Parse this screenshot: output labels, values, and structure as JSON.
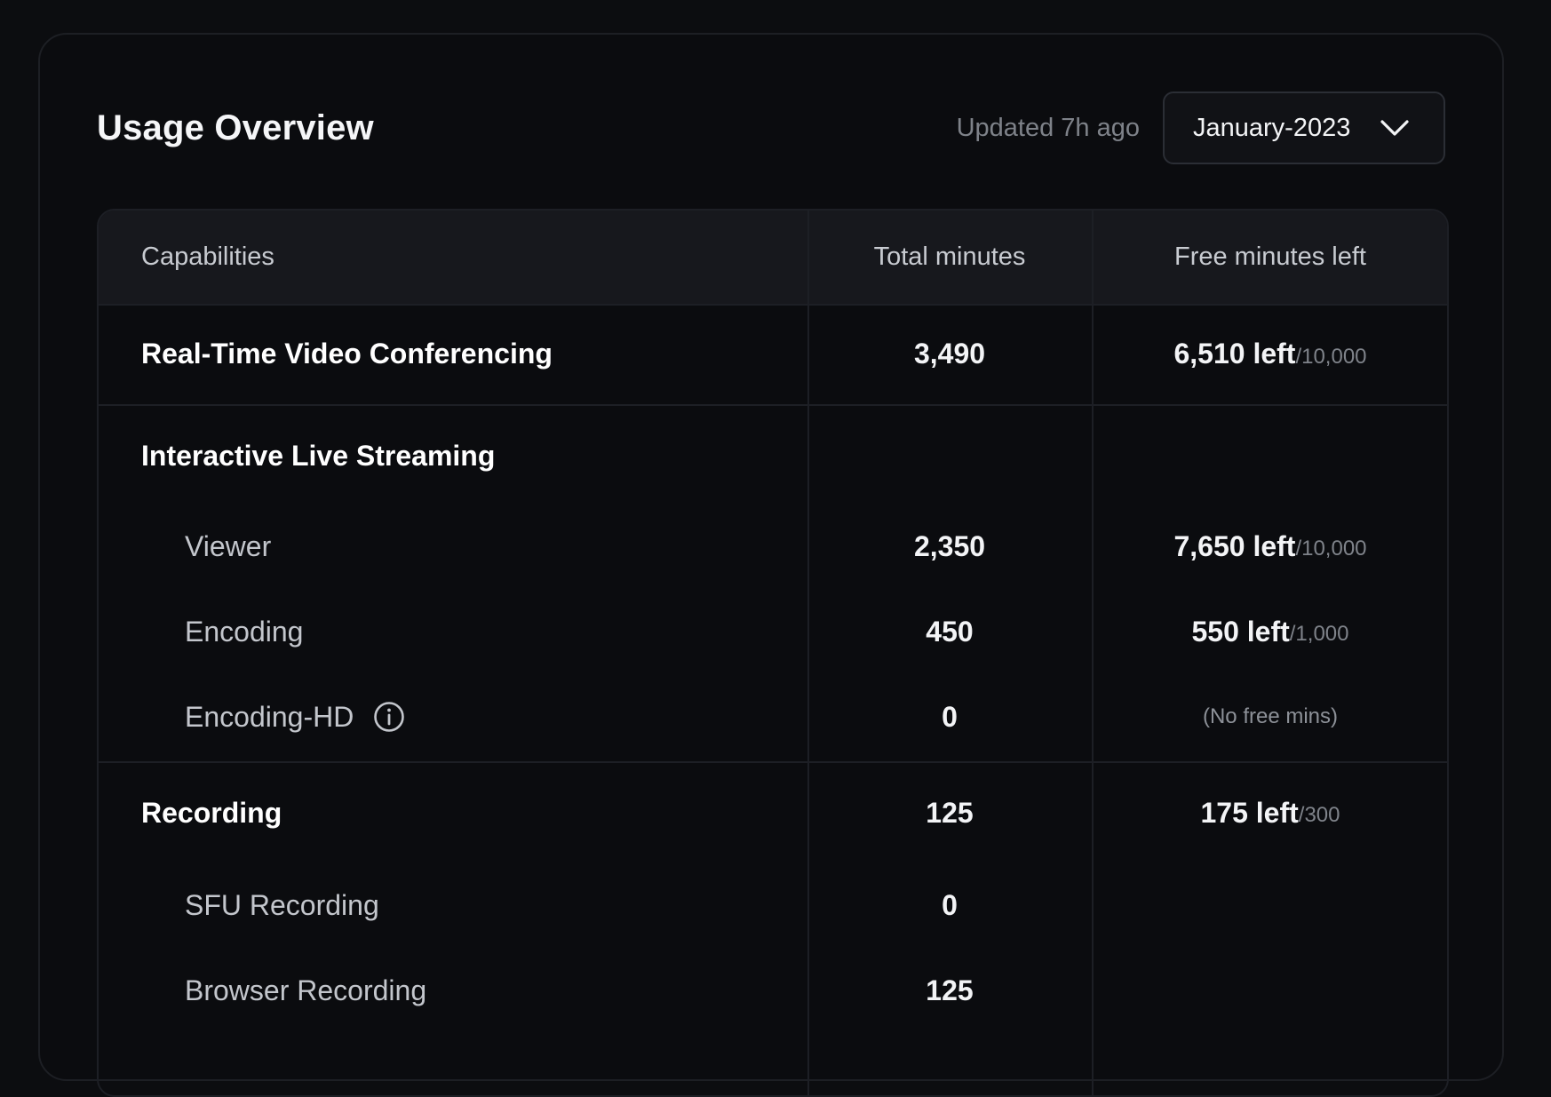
{
  "header": {
    "title": "Usage Overview",
    "updated": "Updated 7h ago",
    "month_select": {
      "selected": "January-2023"
    }
  },
  "table": {
    "columns": [
      "Capabilities",
      "Total minutes",
      "Free minutes left"
    ],
    "rows": [
      {
        "name": "Real-Time Video Conferencing",
        "level": "group",
        "total": "3,490",
        "left": "6,510 left",
        "of": "/10,000"
      },
      {
        "name": "Interactive Live Streaming",
        "level": "group",
        "total": "",
        "left": "",
        "of": ""
      },
      {
        "name": "Viewer",
        "level": "sub",
        "total": "2,350",
        "left": "7,650 left",
        "of": "/10,000"
      },
      {
        "name": "Encoding",
        "level": "sub",
        "total": "450",
        "left": "550 left",
        "of": "/1,000"
      },
      {
        "name": "Encoding-HD",
        "level": "sub",
        "total": "0",
        "note": "(No free mins)",
        "icon": "info-icon"
      },
      {
        "name": "Recording",
        "level": "group",
        "total": "125",
        "left": "175 left",
        "of": "/300"
      },
      {
        "name": "SFU Recording",
        "level": "sub",
        "total": "0"
      },
      {
        "name": "Browser Recording",
        "level": "sub",
        "total": "125"
      }
    ]
  }
}
